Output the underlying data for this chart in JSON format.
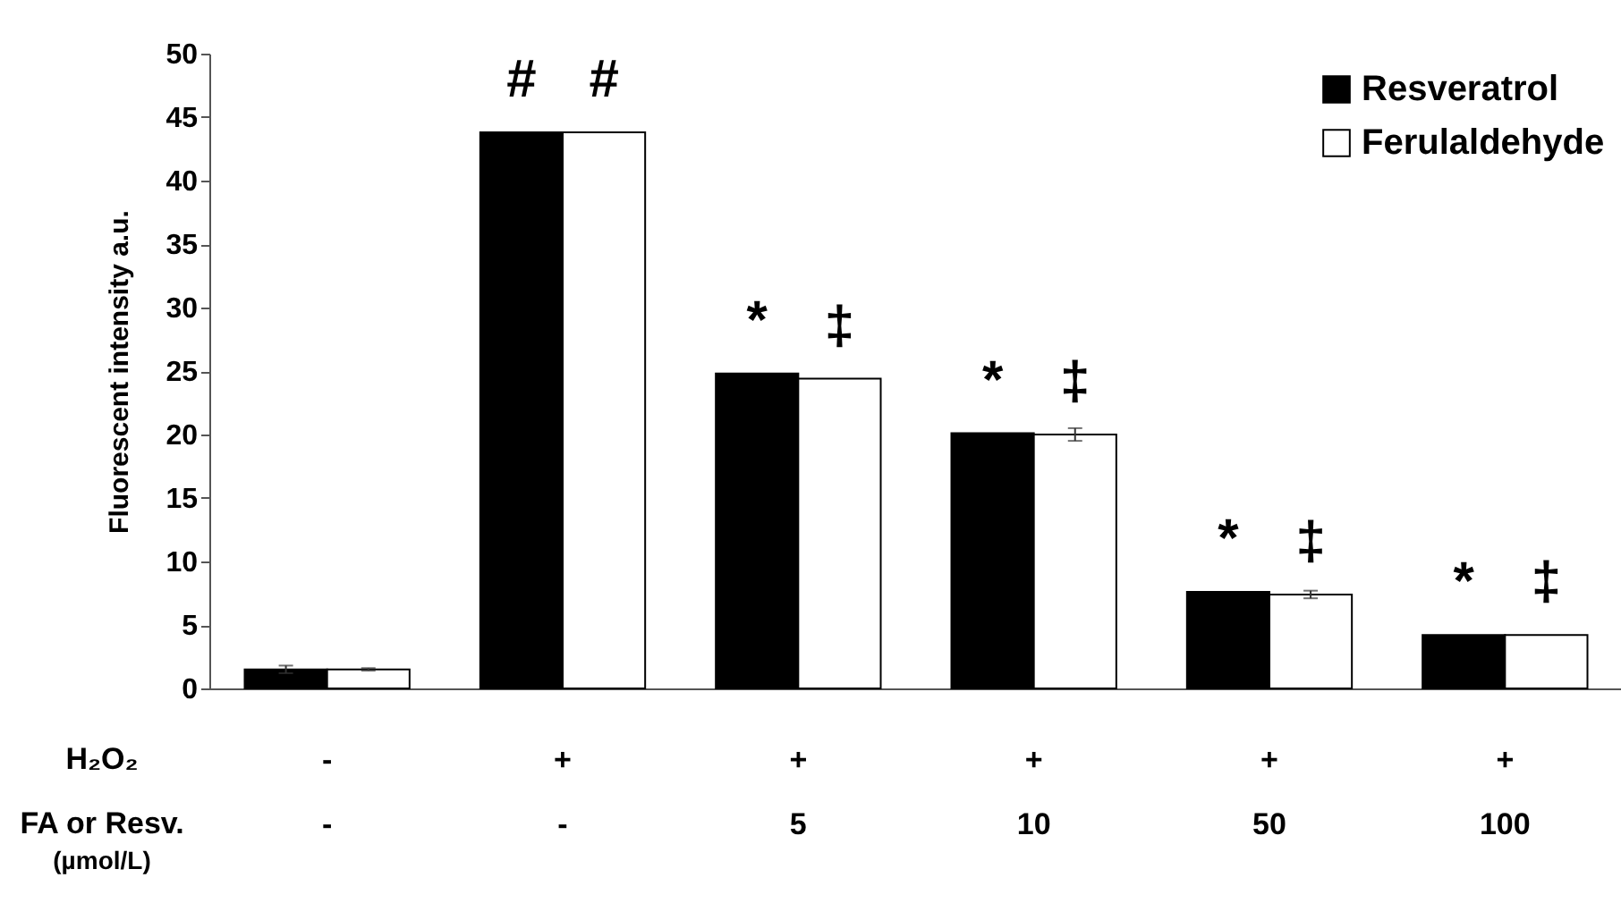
{
  "chart_data": {
    "type": "bar",
    "ylabel": "Fluorescent intensity a.u.",
    "categories": [
      "-\n-",
      "+\n-",
      "+\n5",
      "+\n10",
      "+\n50",
      "+\n100"
    ],
    "series": [
      {
        "name": "Resveratrol",
        "color": "#000000",
        "values": [
          1.5,
          43.8,
          24.8,
          20.1,
          7.6,
          4.2
        ],
        "errors": [
          0.3,
          null,
          null,
          null,
          null,
          null
        ]
      },
      {
        "name": "Ferulaldehyde",
        "color": "#ffffff",
        "values": [
          1.5,
          43.8,
          24.4,
          20.0,
          7.4,
          4.2
        ],
        "errors": [
          0.1,
          null,
          null,
          0.5,
          0.3,
          null
        ]
      }
    ],
    "ylim": [
      0,
      50
    ],
    "yticks": [
      0,
      5,
      10,
      15,
      20,
      25,
      30,
      35,
      40,
      45,
      50
    ],
    "grid": false,
    "legend": "top right",
    "annotations": [
      "#",
      "#",
      "*",
      "‡",
      "*",
      "‡",
      "*",
      "‡",
      "*",
      "‡",
      "H₂O₂",
      "FA or Resv.",
      "(µmol/L)"
    ]
  }
}
